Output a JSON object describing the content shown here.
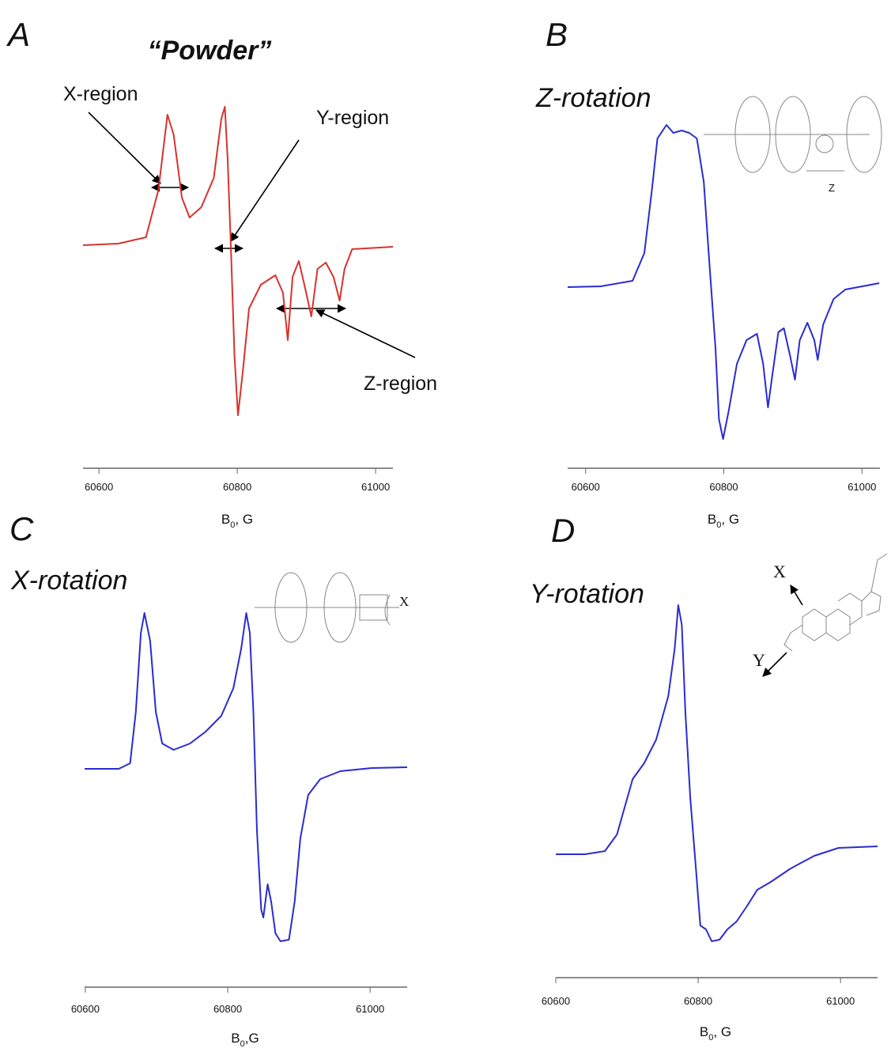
{
  "chart_data": [
    {
      "type": "line",
      "panel": "A",
      "title": "“Powder”",
      "color": "#d8322e",
      "x": [
        60577,
        60628,
        60668,
        60686,
        60699,
        60708,
        60720,
        60731,
        60748,
        60766,
        60777,
        60782,
        60786,
        60791,
        60796,
        60801,
        60808,
        60817,
        60834,
        60855,
        60866,
        60873,
        60880,
        60889,
        60897,
        60907,
        60916,
        60928,
        60939,
        60948,
        60955,
        60966,
        61025
      ],
      "values": [
        0,
        0.02,
        0.1,
        0.7,
        1.65,
        1.4,
        0.6,
        0.35,
        0.48,
        0.85,
        1.6,
        1.75,
        1.1,
        -0.1,
        -1.4,
        -2.15,
        -1.6,
        -0.8,
        -0.5,
        -0.38,
        -0.6,
        -1.2,
        -0.4,
        -0.2,
        -0.5,
        -0.9,
        -0.3,
        -0.22,
        -0.4,
        -0.7,
        -0.3,
        -0.05,
        -0.02
      ],
      "xlim": [
        60577,
        61025
      ],
      "ylim": [
        -2.5,
        2.1
      ],
      "xticks": [
        60600,
        60800,
        61000
      ],
      "xlabel": {
        "main": "B",
        "sub": "0",
        "rest": ", G"
      },
      "annotations": [
        "X-region",
        "Y-region",
        "Z-region"
      ]
    },
    {
      "type": "line",
      "panel": "B",
      "title": "Z-rotation",
      "color": "#2b2bd2",
      "x": [
        60574,
        60622,
        60668,
        60685,
        60696,
        60704,
        60717,
        60727,
        60739,
        60750,
        60761,
        60771,
        60779,
        60788,
        60793,
        60799,
        60807,
        60819,
        60833,
        60848,
        60857,
        60864,
        60871,
        60879,
        60887,
        60896,
        60903,
        60910,
        60921,
        60931,
        60936,
        60944,
        60959,
        60976,
        61025
      ],
      "values": [
        -0.01,
        0,
        0.07,
        0.42,
        1.22,
        1.87,
        2.04,
        1.94,
        1.97,
        1.94,
        1.87,
        1.32,
        0.32,
        -0.78,
        -1.68,
        -1.93,
        -1.58,
        -0.98,
        -0.68,
        -0.6,
        -0.98,
        -1.53,
        -1.08,
        -0.58,
        -0.53,
        -0.88,
        -1.18,
        -0.68,
        -0.46,
        -0.68,
        -0.93,
        -0.48,
        -0.16,
        -0.04,
        0.04
      ],
      "xlim": [
        60574,
        61026
      ],
      "ylim": [
        -2.08,
        2.22
      ],
      "xticks": [
        60600,
        60800,
        61000
      ],
      "xlabel": {
        "main": "B",
        "sub": "0",
        "rest": ", G"
      },
      "annotations": [
        "Z"
      ]
    },
    {
      "type": "line",
      "panel": "C",
      "title": "X-rotation",
      "color": "#2b2bd2",
      "x": [
        60599,
        60647,
        60663,
        60671,
        60678,
        60683,
        60691,
        60699,
        60708,
        60724,
        60747,
        60769,
        60791,
        60808,
        60819,
        60826,
        60831,
        60836,
        60841,
        60847,
        60850,
        60856,
        60861,
        60867,
        60874,
        60886,
        60894,
        60902,
        60913,
        60930,
        60958,
        61002,
        61052
      ],
      "values": [
        0,
        0,
        0.07,
        0.72,
        1.72,
        1.97,
        1.62,
        0.72,
        0.32,
        0.24,
        0.32,
        0.47,
        0.67,
        1.02,
        1.52,
        1.97,
        1.72,
        0.72,
        -0.78,
        -1.78,
        -1.88,
        -1.46,
        -1.68,
        -2.08,
        -2.18,
        -2.16,
        -1.68,
        -0.88,
        -0.33,
        -0.13,
        -0.03,
        0.01,
        0.02
      ],
      "xlim": [
        60599,
        61052
      ],
      "ylim": [
        -2.28,
        2.12
      ],
      "xticks": [
        60600,
        60800,
        61000
      ],
      "xlabel": {
        "main": "B",
        "sub": "0",
        "rest": ",G"
      },
      "annotations": [
        "X"
      ]
    },
    {
      "type": "line",
      "panel": "D",
      "title": "Y-rotation",
      "color": "#2b2bd2",
      "x": [
        60600,
        60641,
        60669,
        60686,
        60697,
        60708,
        60724,
        60741,
        60758,
        60767,
        60772,
        60777,
        60782,
        60789,
        60797,
        60803,
        60811,
        60819,
        60830,
        60841,
        60854,
        60869,
        60883,
        60902,
        60930,
        60963,
        60997,
        61052
      ],
      "values": [
        0,
        0,
        0.04,
        0.25,
        0.6,
        0.95,
        1.15,
        1.45,
        2.0,
        2.6,
        3.15,
        2.9,
        1.8,
        0.7,
        -0.2,
        -0.9,
        -0.95,
        -1.1,
        -1.08,
        -0.95,
        -0.85,
        -0.65,
        -0.45,
        -0.35,
        -0.18,
        -0.02,
        0.08,
        0.1
      ],
      "xlim": [
        60600,
        61052
      ],
      "ylim": [
        -1.3,
        3.4
      ],
      "xticks": [
        60600,
        60800,
        61000
      ],
      "xlabel": {
        "main": "B",
        "sub": "0",
        "rest": ", G"
      },
      "annotations": [
        "X",
        "Y"
      ]
    }
  ]
}
